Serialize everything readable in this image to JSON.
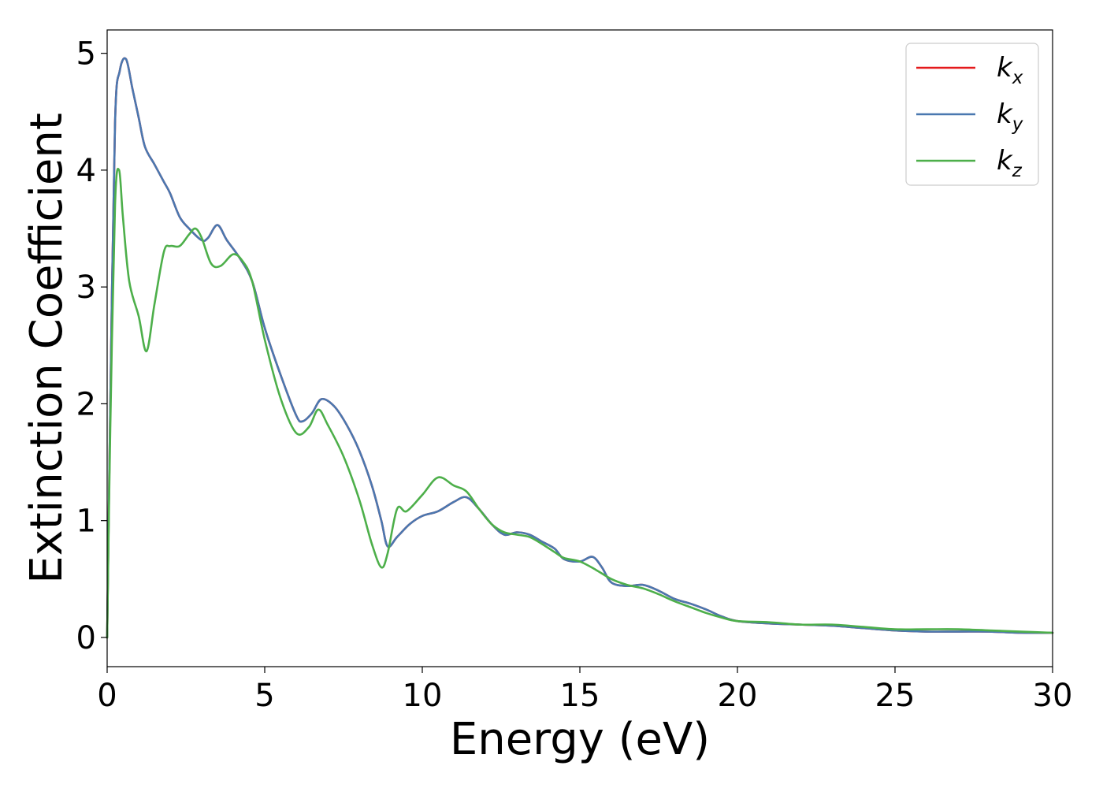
{
  "chart_data": {
    "type": "line",
    "title": "",
    "xlabel": "Energy (eV)",
    "ylabel": "Extinction Coefficient",
    "xlim": [
      0,
      30
    ],
    "ylim": [
      -0.25,
      5.2
    ],
    "xticks": [
      0,
      5,
      10,
      15,
      20,
      25,
      30
    ],
    "xtick_labels": [
      "0",
      "5",
      "10",
      "15",
      "20",
      "25",
      "30"
    ],
    "yticks": [
      0,
      1,
      2,
      3,
      4,
      5
    ],
    "ytick_labels": [
      "0",
      "1",
      "2",
      "3",
      "4",
      "5"
    ],
    "grid": false,
    "legend_position": "top-right",
    "series": [
      {
        "name": "k_x",
        "label_base": "k",
        "label_sub": "x",
        "color": "#e41a1c",
        "x": [
          0,
          0.1,
          0.25,
          0.4,
          0.6,
          0.8,
          1.0,
          1.2,
          1.5,
          1.8,
          2.0,
          2.3,
          2.6,
          3.0,
          3.2,
          3.5,
          3.8,
          4.2,
          4.6,
          5.0,
          5.5,
          6.0,
          6.2,
          6.5,
          6.8,
          7.2,
          7.6,
          8.0,
          8.4,
          8.7,
          8.9,
          9.2,
          9.6,
          10.0,
          10.5,
          11.0,
          11.4,
          11.8,
          12.2,
          12.6,
          13.0,
          13.4,
          13.8,
          14.2,
          14.5,
          15.0,
          15.4,
          15.7,
          16.0,
          16.5,
          17.0,
          17.5,
          18.0,
          18.5,
          19.0,
          19.5,
          20.0,
          21.0,
          22.0,
          23.0,
          24.0,
          25.0,
          26.0,
          27.0,
          28.0,
          29.0,
          30.0
        ],
        "y": [
          0.0,
          2.0,
          4.4,
          4.85,
          4.95,
          4.7,
          4.45,
          4.2,
          4.05,
          3.9,
          3.8,
          3.6,
          3.5,
          3.4,
          3.42,
          3.53,
          3.4,
          3.25,
          3.05,
          2.65,
          2.25,
          1.9,
          1.85,
          1.92,
          2.04,
          1.98,
          1.82,
          1.6,
          1.3,
          1.0,
          0.78,
          0.86,
          0.97,
          1.04,
          1.08,
          1.16,
          1.2,
          1.1,
          0.97,
          0.88,
          0.9,
          0.88,
          0.82,
          0.76,
          0.67,
          0.65,
          0.69,
          0.6,
          0.47,
          0.44,
          0.45,
          0.4,
          0.33,
          0.29,
          0.24,
          0.18,
          0.14,
          0.12,
          0.11,
          0.1,
          0.08,
          0.06,
          0.05,
          0.05,
          0.05,
          0.04,
          0.04
        ]
      },
      {
        "name": "k_y",
        "label_base": "k",
        "label_sub": "y",
        "color": "#4a78b0",
        "x": [
          0,
          0.1,
          0.25,
          0.4,
          0.6,
          0.8,
          1.0,
          1.2,
          1.5,
          1.8,
          2.0,
          2.3,
          2.6,
          3.0,
          3.2,
          3.5,
          3.8,
          4.2,
          4.6,
          5.0,
          5.5,
          6.0,
          6.2,
          6.5,
          6.8,
          7.2,
          7.6,
          8.0,
          8.4,
          8.7,
          8.9,
          9.2,
          9.6,
          10.0,
          10.5,
          11.0,
          11.4,
          11.8,
          12.2,
          12.6,
          13.0,
          13.4,
          13.8,
          14.2,
          14.5,
          15.0,
          15.4,
          15.7,
          16.0,
          16.5,
          17.0,
          17.5,
          18.0,
          18.5,
          19.0,
          19.5,
          20.0,
          21.0,
          22.0,
          23.0,
          24.0,
          25.0,
          26.0,
          27.0,
          28.0,
          29.0,
          30.0
        ],
        "y": [
          0.0,
          2.0,
          4.4,
          4.85,
          4.95,
          4.7,
          4.45,
          4.2,
          4.05,
          3.9,
          3.8,
          3.6,
          3.5,
          3.4,
          3.42,
          3.53,
          3.4,
          3.25,
          3.05,
          2.65,
          2.25,
          1.9,
          1.85,
          1.92,
          2.04,
          1.98,
          1.82,
          1.6,
          1.3,
          1.0,
          0.78,
          0.86,
          0.97,
          1.04,
          1.08,
          1.16,
          1.2,
          1.1,
          0.97,
          0.88,
          0.9,
          0.88,
          0.82,
          0.76,
          0.67,
          0.65,
          0.69,
          0.6,
          0.47,
          0.44,
          0.45,
          0.4,
          0.33,
          0.29,
          0.24,
          0.18,
          0.14,
          0.12,
          0.11,
          0.1,
          0.08,
          0.06,
          0.05,
          0.05,
          0.05,
          0.04,
          0.04
        ]
      },
      {
        "name": "k_z",
        "label_base": "k",
        "label_sub": "z",
        "color": "#4daf4a",
        "x": [
          0,
          0.1,
          0.25,
          0.38,
          0.5,
          0.7,
          1.0,
          1.25,
          1.5,
          1.8,
          2.0,
          2.3,
          2.6,
          2.8,
          3.0,
          3.3,
          3.6,
          4.0,
          4.3,
          4.6,
          5.0,
          5.5,
          6.0,
          6.4,
          6.7,
          7.0,
          7.5,
          8.0,
          8.4,
          8.7,
          8.9,
          9.2,
          9.5,
          10.0,
          10.5,
          11.0,
          11.4,
          11.8,
          12.2,
          12.6,
          13.0,
          13.4,
          13.8,
          14.2,
          14.5,
          15.0,
          15.5,
          16.0,
          16.5,
          17.0,
          17.5,
          18.0,
          18.5,
          19.0,
          19.5,
          20.0,
          21.0,
          22.0,
          23.0,
          24.0,
          25.0,
          26.0,
          27.0,
          28.0,
          29.0,
          30.0
        ],
        "y": [
          0.0,
          1.8,
          3.7,
          4.0,
          3.6,
          3.05,
          2.75,
          2.45,
          2.85,
          3.3,
          3.35,
          3.35,
          3.45,
          3.5,
          3.42,
          3.2,
          3.18,
          3.28,
          3.22,
          3.05,
          2.55,
          2.05,
          1.75,
          1.8,
          1.95,
          1.82,
          1.55,
          1.18,
          0.8,
          0.6,
          0.72,
          1.1,
          1.08,
          1.22,
          1.37,
          1.3,
          1.25,
          1.1,
          0.97,
          0.9,
          0.88,
          0.86,
          0.8,
          0.73,
          0.68,
          0.65,
          0.58,
          0.5,
          0.45,
          0.42,
          0.37,
          0.31,
          0.26,
          0.21,
          0.17,
          0.14,
          0.13,
          0.11,
          0.11,
          0.09,
          0.07,
          0.07,
          0.07,
          0.06,
          0.05,
          0.04
        ]
      }
    ]
  }
}
